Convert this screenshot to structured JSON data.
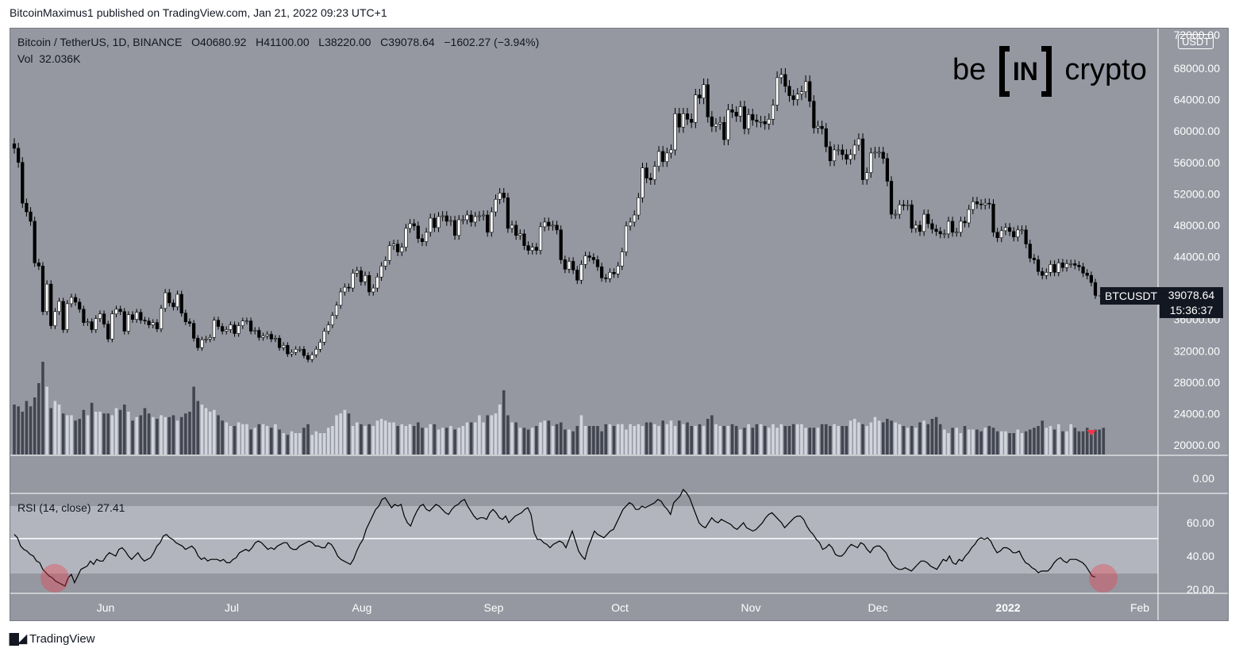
{
  "header": {
    "publisher": "BitcoinMaximus1 published on TradingView.com, Jan 21, 2022 09:23 UTC+1"
  },
  "legend": {
    "symbol": "Bitcoin / TetherUS, 1D, BINANCE",
    "o_label": "O",
    "o_value": "40680.92",
    "h_label": "H",
    "h_value": "41100.00",
    "l_label": "L",
    "l_value": "38220.00",
    "c_label": "C",
    "c_value": "39078.64",
    "change": "−1602.27 (−3.94%)",
    "vol_label": "Vol",
    "vol_value": "32.036K",
    "rsi_label": "RSI (14, close)",
    "rsi_value": "27.41"
  },
  "price_axis": {
    "currency": "USDT",
    "ticks": [
      "68000.00",
      "64000.00",
      "60000.00",
      "56000.00",
      "52000.00",
      "48000.00",
      "44000.00",
      "36000.00",
      "32000.00",
      "28000.00",
      "24000.00",
      "20000.00"
    ],
    "top_partial": "72000.00"
  },
  "rsi_axis": {
    "ticks": [
      "0.00",
      "60.00",
      "40.00",
      "20.00"
    ]
  },
  "price_tag": {
    "symbol": "BTCUSDT",
    "price": "39078.64",
    "countdown": "15:36:37"
  },
  "time_axis": {
    "labels": [
      "Jun",
      "Jul",
      "Aug",
      "Sep",
      "Oct",
      "Nov",
      "Dec",
      "2022",
      "Feb"
    ]
  },
  "logo": {
    "left": "be",
    "mid": "IN",
    "right": "crypto"
  },
  "footer": {
    "brand": "TradingView"
  },
  "colors": {
    "background": "#9598a1",
    "rsi_band": "#b2b5be",
    "up_candle": "#ffffff",
    "down_candle": "#000000",
    "volume_up": "#d1d4dc",
    "volume_down": "#434651",
    "rsi_line": "#000000",
    "highlight": "#f23645"
  },
  "chart_data": [
    {
      "type": "candlestick",
      "title": "Bitcoin / TetherUS, 1D, BINANCE",
      "x_labels": [
        "Jun",
        "Jul",
        "Aug",
        "Sep",
        "Oct",
        "Nov",
        "Dec",
        "2022",
        "Feb"
      ],
      "ylim": [
        20000,
        72000
      ],
      "close_series": [
        57800,
        56000,
        50800,
        49700,
        48500,
        43200,
        42800,
        37000,
        40500,
        35200,
        37000,
        38300,
        34700,
        38000,
        38800,
        38200,
        37300,
        35600,
        35700,
        34700,
        36100,
        36700,
        35400,
        33500,
        36700,
        37300,
        37000,
        34500,
        36600,
        36000,
        36900,
        35900,
        35800,
        35300,
        35600,
        34800,
        37400,
        39400,
        38100,
        37600,
        39200,
        36800,
        35700,
        35500,
        33600,
        32400,
        33400,
        33500,
        33700,
        35900,
        35100,
        34500,
        34700,
        35300,
        34200,
        35200,
        35800,
        35800,
        34500,
        34600,
        33700,
        33900,
        34100,
        33500,
        33600,
        32400,
        32700,
        31600,
        31800,
        32200,
        32200,
        31400,
        30900,
        31500,
        32200,
        33100,
        34500,
        35300,
        36500,
        37800,
        39500,
        40100,
        40000,
        41900,
        42200,
        40800,
        41600,
        39500,
        40000,
        41400,
        42800,
        43500,
        45400,
        45600,
        44600,
        45200,
        47600,
        48200,
        47900,
        46300,
        45900,
        47100,
        48900,
        47700,
        49100,
        49200,
        48500,
        48600,
        46700,
        48700,
        48700,
        49300,
        48400,
        49100,
        49200,
        49300,
        47100,
        49700,
        51300,
        52100,
        51500,
        47600,
        48000,
        46700,
        46900,
        45400,
        44800,
        45200,
        44800,
        47800,
        48400,
        47900,
        48000,
        47400,
        43600,
        42400,
        43400,
        42300,
        41000,
        43000,
        44100,
        43900,
        43600,
        42700,
        41300,
        41200,
        42000,
        41800,
        42800,
        44600,
        47900,
        48400,
        49300,
        51500,
        55300,
        54000,
        53800,
        55500,
        57400,
        56100,
        57200,
        57600,
        62200,
        60500,
        62200,
        61500,
        61100,
        64600,
        64200,
        65900,
        61800,
        60600,
        60900,
        61100,
        58900,
        62700,
        62400,
        61900,
        63100,
        60300,
        62100,
        61400,
        61200,
        61200,
        60900,
        61500,
        63300,
        66800,
        67200,
        65700,
        64500,
        64000,
        64700,
        65000,
        66300,
        63800,
        60400,
        60600,
        60300,
        58000,
        56200,
        57600,
        57600,
        57000,
        56400,
        57000,
        58200,
        59000,
        53800,
        54700,
        57200,
        57300,
        57300,
        56500,
        53600,
        49400,
        49400,
        50600,
        50500,
        50600,
        47600,
        48000,
        47200,
        49400,
        48200,
        47500,
        47200,
        46900,
        46900,
        48500,
        47100,
        47100,
        48500,
        48300,
        50000,
        51000,
        50700,
        50600,
        50800,
        50700,
        47100,
        46400,
        47300,
        47700,
        47200,
        46500,
        47400,
        47400,
        45600,
        43800,
        43600,
        42100,
        41600,
        42000,
        43000,
        42000,
        43200,
        42600,
        43100,
        43100,
        42900,
        42700,
        41900,
        41600,
        40700,
        39078.64
      ],
      "volume_series": [
        28,
        27,
        24,
        30,
        27,
        32,
        40,
        52,
        38,
        26,
        30,
        28,
        23,
        22,
        22,
        19,
        20,
        25,
        22,
        29,
        24,
        24,
        23,
        23,
        22,
        26,
        25,
        28,
        24,
        19,
        21,
        22,
        26,
        23,
        21,
        20,
        22,
        21,
        21,
        22,
        19,
        21,
        23,
        24,
        38,
        30,
        28,
        26,
        24,
        25,
        22,
        19,
        18,
        16,
        16,
        18,
        17,
        17,
        14,
        15,
        17,
        17,
        16,
        15,
        17,
        14,
        12,
        11,
        13,
        12,
        12,
        15,
        17,
        11,
        13,
        12,
        12,
        15,
        16,
        22,
        23,
        25,
        23,
        16,
        18,
        17,
        16,
        17,
        16,
        19,
        20,
        19,
        18,
        18,
        16,
        17,
        16,
        17,
        16,
        18,
        15,
        15,
        17,
        17,
        14,
        15,
        15,
        16,
        14,
        15,
        16,
        18,
        18,
        18,
        22,
        18,
        22,
        22,
        23,
        28,
        36,
        22,
        18,
        18,
        15,
        15,
        14,
        15,
        16,
        18,
        19,
        19,
        16,
        17,
        18,
        14,
        14,
        13,
        16,
        22,
        16,
        16,
        16,
        16,
        13,
        17,
        17,
        16,
        17,
        17,
        14,
        17,
        16,
        17,
        16,
        18,
        18,
        17,
        16,
        19,
        17,
        19,
        16,
        19,
        17,
        18,
        16,
        16,
        17,
        16,
        20,
        22,
        17,
        16,
        16,
        16,
        17,
        16,
        14,
        15,
        17,
        15,
        17,
        17,
        16,
        15,
        17,
        15,
        17,
        16,
        16,
        17,
        17,
        17,
        15,
        15,
        15,
        15,
        17,
        17,
        16,
        17,
        16,
        16,
        16,
        19,
        20,
        18,
        17,
        16,
        18,
        21,
        19,
        18,
        20,
        19,
        18,
        17,
        16,
        15,
        16,
        15,
        18,
        19,
        17,
        20,
        21,
        17,
        14,
        12,
        15,
        15,
        12,
        16,
        14,
        14,
        14,
        13,
        15,
        16,
        15,
        13,
        13,
        13,
        12,
        12,
        14,
        12,
        13,
        14,
        15,
        16,
        19,
        15,
        16,
        14,
        17,
        13,
        13,
        17,
        15,
        13,
        13,
        15,
        13,
        14,
        14,
        15
      ],
      "volume_ylim": [
        0,
        60
      ]
    },
    {
      "type": "line",
      "title": "RSI (14, close)",
      "ylim": [
        0,
        80
      ],
      "bands": {
        "upper": 70,
        "middle": 50,
        "lower": 30
      },
      "values": [
        53,
        51,
        46,
        44,
        43,
        41,
        40,
        37,
        36,
        32,
        30,
        28,
        27,
        25,
        24,
        23,
        22,
        27,
        29,
        24,
        28,
        32,
        33,
        34,
        37,
        35,
        38,
        37,
        37,
        40,
        42,
        41,
        40,
        44,
        45,
        43,
        40,
        38,
        40,
        42,
        39,
        37,
        38,
        39,
        42,
        46,
        48,
        52,
        53,
        51,
        50,
        48,
        47,
        46,
        44,
        45,
        46,
        44,
        40,
        38,
        39,
        37,
        38,
        38,
        38,
        37,
        38,
        36,
        36,
        38,
        39,
        42,
        43,
        44,
        43,
        45,
        48,
        49,
        48,
        46,
        44,
        45,
        44,
        46,
        47,
        48,
        48,
        45,
        44,
        44,
        46,
        47,
        48,
        49,
        48,
        46,
        46,
        45,
        45,
        48,
        47,
        44,
        40,
        38,
        37,
        36,
        35,
        38,
        43,
        47,
        50,
        56,
        60,
        64,
        68,
        70,
        74,
        75,
        72,
        69,
        71,
        70,
        71,
        64,
        60,
        58,
        63,
        67,
        70,
        71,
        68,
        67,
        69,
        71,
        70,
        68,
        66,
        65,
        68,
        70,
        71,
        73,
        74,
        70,
        67,
        64,
        62,
        63,
        63,
        62,
        66,
        68,
        66,
        63,
        62,
        64,
        60,
        62,
        64,
        65,
        66,
        68,
        69,
        65,
        54,
        50,
        50,
        48,
        47,
        45,
        47,
        48,
        49,
        48,
        45,
        50,
        55,
        49,
        43,
        40,
        38,
        45,
        50,
        55,
        53,
        52,
        51,
        53,
        55,
        56,
        60,
        64,
        68,
        70,
        72,
        71,
        68,
        68,
        70,
        69,
        70,
        71,
        72,
        74,
        73,
        70,
        68,
        65,
        72,
        74,
        76,
        80,
        78,
        75,
        70,
        65,
        60,
        58,
        57,
        60,
        63,
        61,
        60,
        62,
        61,
        60,
        59,
        57,
        56,
        58,
        60,
        57,
        56,
        55,
        56,
        58,
        60,
        63,
        65,
        66,
        64,
        62,
        60,
        57,
        59,
        61,
        63,
        64,
        64,
        62,
        58,
        55,
        53,
        50,
        48,
        44,
        45,
        47,
        45,
        41,
        40,
        40,
        42,
        45,
        47,
        46,
        45,
        48,
        47,
        44,
        42,
        45,
        46,
        46,
        44,
        42,
        38,
        35,
        33,
        32,
        32,
        33,
        32,
        31,
        33,
        35,
        37,
        37,
        36,
        34,
        33,
        32,
        35,
        38,
        37,
        40,
        36,
        35,
        38,
        37,
        40,
        42,
        45,
        47,
        50,
        51,
        50,
        51,
        49,
        45,
        42,
        43,
        45,
        45,
        44,
        42,
        42,
        43,
        39,
        36,
        35,
        33,
        32,
        30,
        31,
        31,
        31,
        33,
        36,
        38,
        39,
        37,
        36,
        38,
        38,
        38,
        37,
        36,
        34,
        31,
        28,
        27.41
      ]
    }
  ]
}
